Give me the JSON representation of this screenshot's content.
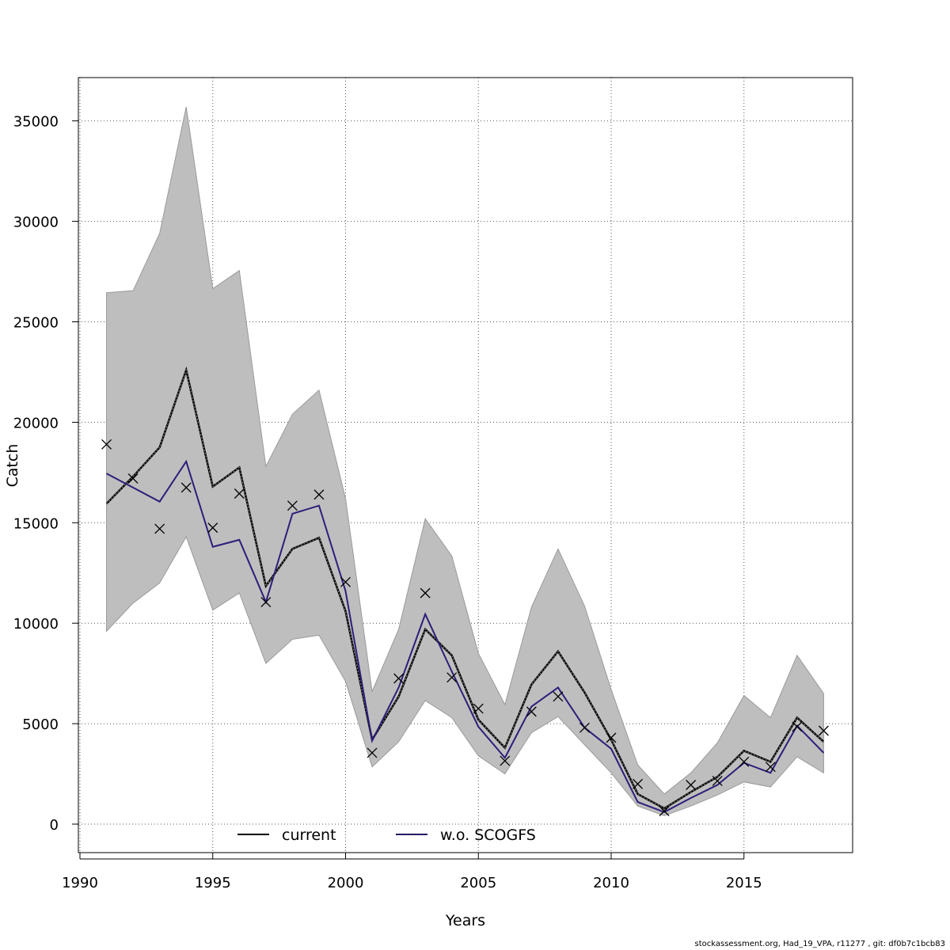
{
  "chart_data": {
    "type": "line",
    "xlabel": "Years",
    "ylabel": "Catch",
    "xlim": [
      1990,
      2019
    ],
    "ylim": [
      -1500,
      37000
    ],
    "x_ticks": [
      1990,
      1995,
      2000,
      2005,
      2010,
      2015
    ],
    "y_ticks": [
      0,
      5000,
      10000,
      15000,
      20000,
      25000,
      30000,
      35000
    ],
    "grid": true,
    "legend_position": "bottom",
    "legend": [
      "current",
      "w.o. SCOGFS"
    ],
    "x": [
      1991,
      1992,
      1993,
      1994,
      1995,
      1996,
      1997,
      1998,
      1999,
      2000,
      2001,
      2002,
      2003,
      2004,
      2005,
      2006,
      2007,
      2008,
      2009,
      2010,
      2011,
      2012,
      2013,
      2014,
      2015,
      2016,
      2017,
      2018
    ],
    "series": [
      {
        "name": "current",
        "color": "#000000",
        "style": "solid-with-dotted-overlay",
        "values": [
          15950,
          17300,
          18750,
          22600,
          16800,
          17750,
          11850,
          13700,
          14250,
          10600,
          4200,
          6350,
          9700,
          8400,
          5200,
          3800,
          6950,
          8600,
          6550,
          4200,
          1500,
          780,
          1600,
          2350,
          3650,
          3100,
          5300,
          4100
        ]
      },
      {
        "name": "w.o. SCOGFS",
        "color": "#2a1f7a",
        "style": "solid",
        "values": [
          17450,
          16750,
          16050,
          18050,
          13800,
          14150,
          11050,
          15450,
          15850,
          11600,
          4150,
          6800,
          10450,
          7600,
          4850,
          3300,
          5850,
          6800,
          4800,
          3750,
          1100,
          600,
          1300,
          1950,
          3050,
          2550,
          4900,
          3550
        ]
      }
    ],
    "confidence_band": {
      "color": "#bebebe",
      "lower": [
        9600,
        11000,
        12000,
        14300,
        10650,
        11500,
        8000,
        9200,
        9400,
        7100,
        2850,
        4100,
        6150,
        5300,
        3400,
        2500,
        4550,
        5350,
        3950,
        2550,
        900,
        420,
        900,
        1450,
        2100,
        1850,
        3350,
        2550
      ],
      "upper": [
        26450,
        26550,
        29400,
        35700,
        26650,
        27550,
        17800,
        20400,
        21600,
        16200,
        6600,
        9700,
        15200,
        13350,
        8500,
        5950,
        10800,
        13700,
        10850,
        6700,
        2950,
        1500,
        2550,
        4050,
        6400,
        5300,
        8400,
        6500
      ]
    },
    "observed": {
      "marker": "x",
      "values": [
        18900,
        17200,
        14700,
        16750,
        14750,
        16450,
        11050,
        15850,
        16400,
        12050,
        3550,
        7250,
        11500,
        7300,
        5750,
        3150,
        5600,
        6350,
        4800,
        4300,
        2000,
        650,
        1950,
        2150,
        3100,
        2850,
        4850,
        4650
      ]
    }
  },
  "footer": {
    "text": "stockassessment.org, Had_19_VPA, r11277 , git: df0b7c1bcb83"
  }
}
